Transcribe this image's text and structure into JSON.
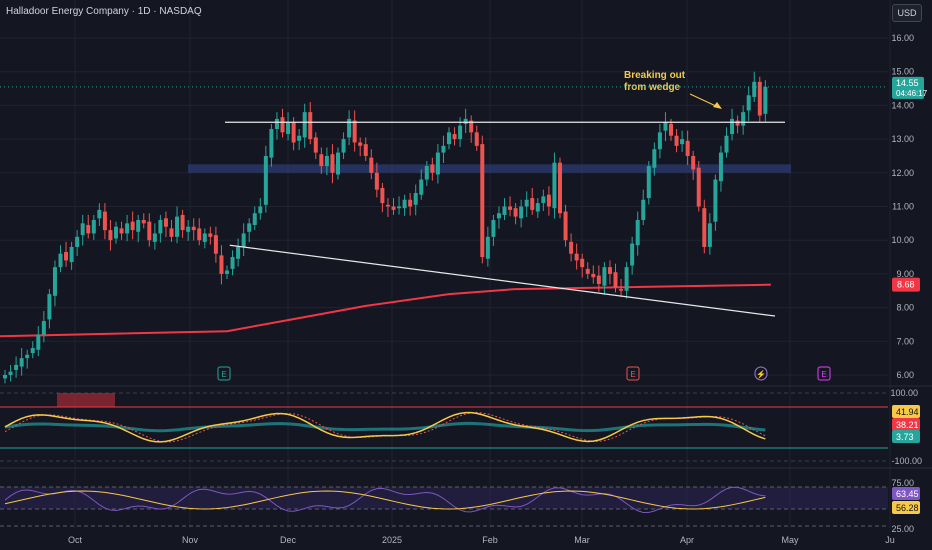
{
  "header": {
    "title": "Halladoor Energy Company · 1D · NASDAQ",
    "currency": "USD"
  },
  "colors": {
    "background": "#141722",
    "up": "#26a69a",
    "down": "#ef5350",
    "ma": "#f23645",
    "resistance_zone": "#2a3a6e"
  },
  "chart_data": [
    {
      "type": "candlestick",
      "name": "price",
      "x_ticks": [
        "Oct",
        "Nov",
        "Dec",
        "2025",
        "Feb",
        "Mar",
        "Apr",
        "May",
        "Ju"
      ],
      "y_ticks": [
        "16.00",
        "15.00",
        "14.00",
        "13.00",
        "12.00",
        "11.00",
        "10.00",
        "9.00",
        "8.00",
        "7.00",
        "6.00"
      ],
      "ylim": [
        5.8,
        16.8
      ],
      "close_series": [
        6.0,
        6.1,
        6.3,
        6.5,
        6.6,
        6.8,
        7.2,
        7.6,
        8.4,
        9.2,
        9.6,
        9.4,
        9.8,
        10.1,
        10.5,
        10.2,
        10.6,
        10.9,
        10.3,
        10.0,
        10.4,
        10.2,
        10.5,
        10.3,
        10.6,
        10.5,
        10.0,
        10.2,
        10.6,
        10.4,
        10.1,
        10.7,
        10.3,
        10.4,
        10.3,
        10.0,
        10.2,
        10.1,
        9.6,
        9.0,
        9.1,
        9.5,
        9.8,
        10.2,
        10.5,
        10.8,
        11.0,
        12.5,
        13.3,
        13.6,
        13.2,
        13.5,
        12.9,
        13.1,
        13.8,
        13.0,
        12.6,
        12.2,
        12.5,
        12.0,
        12.6,
        13.0,
        13.6,
        12.9,
        12.8,
        12.5,
        12.0,
        11.5,
        11.1,
        11.0,
        10.9,
        11.0,
        11.2,
        11.0,
        11.4,
        11.8,
        12.2,
        12.0,
        12.6,
        12.8,
        13.2,
        13.0,
        13.4,
        13.6,
        13.2,
        12.8,
        9.5,
        10.1,
        10.6,
        10.8,
        11.0,
        10.9,
        10.7,
        11.0,
        11.2,
        10.9,
        11.1,
        11.3,
        11.0,
        12.3,
        10.8,
        10.0,
        9.6,
        9.4,
        9.2,
        9.0,
        8.9,
        8.7,
        9.2,
        9.0,
        8.6,
        8.5,
        9.2,
        9.9,
        10.6,
        11.2,
        12.2,
        12.7,
        13.2,
        13.5,
        13.1,
        12.8,
        13.0,
        12.5,
        12.1,
        11.0,
        9.8,
        10.5,
        11.8,
        12.6,
        13.1,
        13.6,
        13.4,
        13.8,
        14.3,
        14.7,
        13.7,
        14.55
      ],
      "current_price": "14.55",
      "countdown": "04:46:17",
      "ma_label": "8.68",
      "annotation": "Breaking out\nfrom wedge",
      "horizontal_line": 13.5,
      "zone": [
        12.0,
        12.25
      ],
      "wedge_lower": {
        "from": [
          45,
          9.85
        ],
        "to": [
          138,
          7.75
        ]
      },
      "ma_series": [
        [
          0,
          7.15
        ],
        [
          40,
          7.3
        ],
        [
          50,
          7.6
        ],
        [
          65,
          8.05
        ],
        [
          80,
          8.4
        ],
        [
          92,
          8.55
        ],
        [
          138,
          8.68
        ]
      ],
      "event_markers": [
        "E",
        "E",
        "⚡",
        "E"
      ]
    },
    {
      "type": "line",
      "name": "oscillator",
      "y_ticks": [
        "100.00",
        "-100.00"
      ],
      "current_values": [
        "41.94",
        "38.21",
        "3.73"
      ]
    },
    {
      "type": "line",
      "name": "rsi",
      "y_ticks": [
        "75.00",
        "25.00"
      ],
      "current_values": [
        "63.45",
        "56.28"
      ]
    }
  ]
}
